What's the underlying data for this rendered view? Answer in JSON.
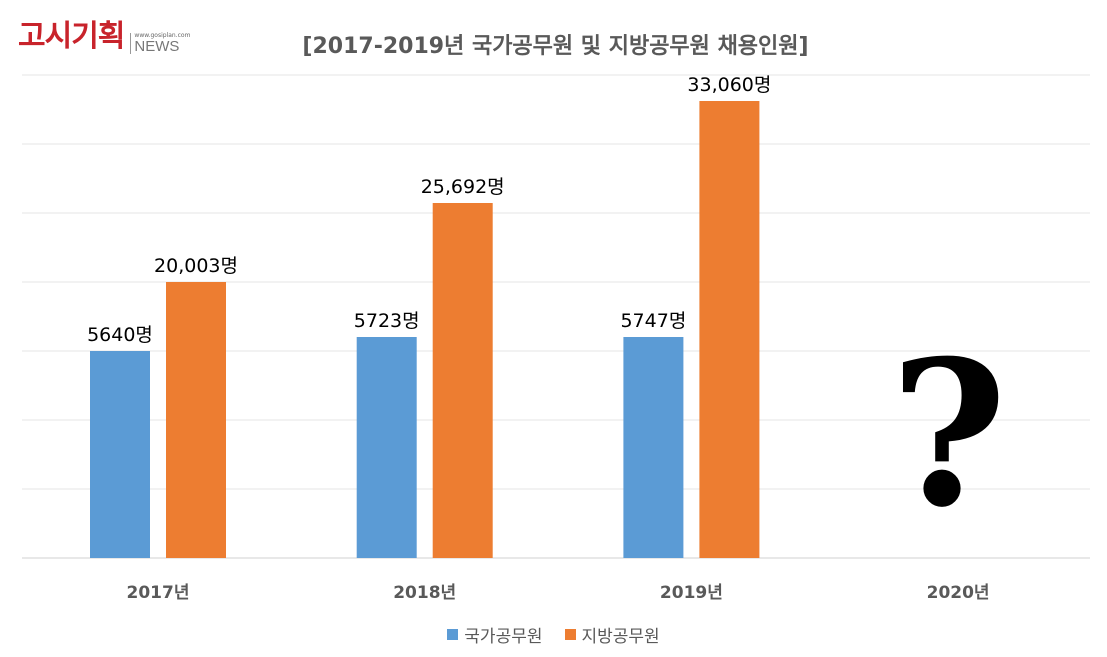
{
  "logo": {
    "name": "고시기획",
    "url": "www.gosiplan.com",
    "sub": "NEWS"
  },
  "chart_data": {
    "type": "bar",
    "title": "[2017-2019년 국가공무원 및 지방공무원 채용인원]",
    "categories": [
      "2017년",
      "2018년",
      "2019년",
      "2020년"
    ],
    "series": [
      {
        "name": "국가공무원",
        "color": "#5b9bd5",
        "values": [
          5640,
          5723,
          5747,
          null
        ],
        "labels": [
          "5640명",
          "5723명",
          "5747명",
          ""
        ]
      },
      {
        "name": "지방공무원",
        "color": "#ed7d31",
        "values": [
          20003,
          25692,
          33060,
          null
        ],
        "labels": [
          "20,003명",
          "25,692명",
          "33,060명",
          ""
        ]
      }
    ],
    "unknown_annotation": "?",
    "grid": true,
    "legend": "bottom",
    "y_axis_labels": false
  }
}
